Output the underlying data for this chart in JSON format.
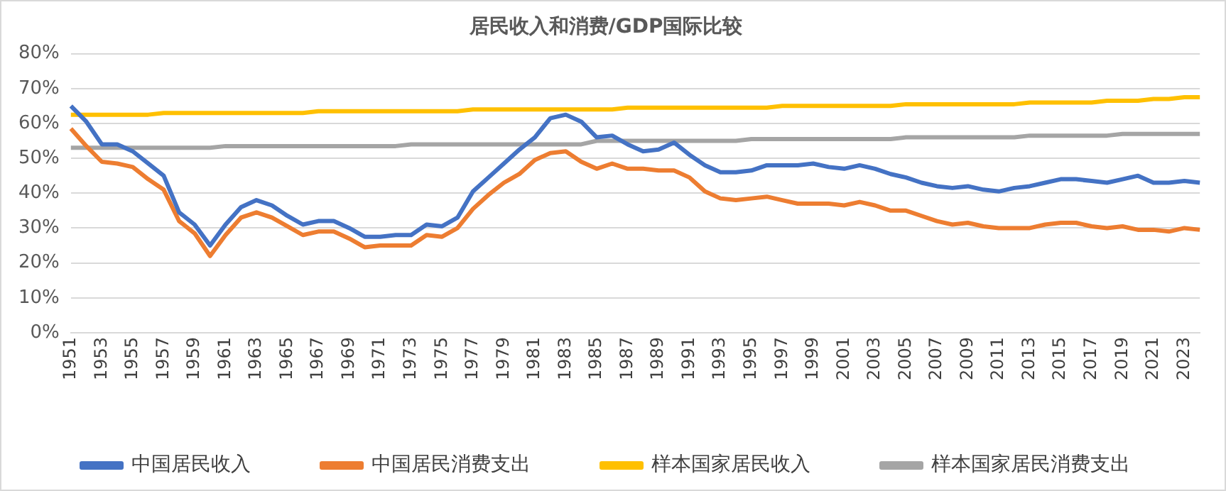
{
  "chart_data": {
    "type": "line",
    "title": "居民收入和消费/GDP国际比较",
    "categories": [
      "1951",
      null,
      "1953",
      null,
      "1955",
      null,
      "1957",
      null,
      "1959",
      null,
      "1961",
      null,
      "1963",
      null,
      "1965",
      null,
      "1967",
      null,
      "1969",
      null,
      "1971",
      null,
      "1973",
      null,
      "1975",
      null,
      "1977",
      null,
      "1979",
      null,
      "1981",
      null,
      "1983",
      null,
      "1985",
      null,
      "1987",
      null,
      "1989",
      null,
      "1991",
      null,
      "1993",
      null,
      "1995",
      null,
      "1997",
      null,
      "1999",
      null,
      "2001",
      null,
      "2003",
      null,
      "2005",
      null,
      "2007",
      null,
      "2009",
      null,
      "2011",
      null,
      "2013",
      null,
      "2015",
      null,
      "2017",
      null,
      "2019",
      null,
      "2021",
      null,
      "2023",
      null
    ],
    "series": [
      {
        "name": "中国居民收入",
        "color": "#4472c4",
        "values": [
          65,
          60.5,
          54,
          54,
          52,
          48.5,
          45,
          34.5,
          31,
          25,
          31,
          36,
          38,
          36.5,
          33.5,
          31,
          32,
          32,
          30,
          27.5,
          27.5,
          28,
          28,
          31,
          30.5,
          33,
          40.5,
          44.5,
          48.5,
          52.5,
          56,
          61.5,
          62.5,
          60.5,
          56,
          56.5,
          54,
          52,
          52.5,
          54.5,
          51,
          48,
          46,
          46,
          46.5,
          48,
          48,
          48,
          48.5,
          47.5,
          47,
          48,
          47,
          45.5,
          44.5,
          43,
          42,
          41.5,
          42,
          41,
          40.5,
          41.5,
          42,
          43,
          44,
          44,
          43.5,
          43,
          44,
          45,
          43,
          43,
          43.5,
          43
        ]
      },
      {
        "name": "中国居民消费支出",
        "color": "#ed7d31",
        "values": [
          58.5,
          53.5,
          49,
          48.5,
          47.5,
          44,
          41,
          32,
          28.5,
          22,
          28,
          33,
          34.5,
          33,
          30.5,
          28,
          29,
          29,
          27,
          24.5,
          25,
          25,
          25,
          28,
          27.5,
          30,
          35.5,
          39.5,
          43,
          45.5,
          49.5,
          51.5,
          52,
          49,
          47,
          48.5,
          47,
          47,
          46.5,
          46.5,
          44.5,
          40.5,
          38.5,
          38,
          38.5,
          39,
          38,
          37,
          37,
          37,
          36.5,
          37.5,
          36.5,
          35,
          35,
          33.5,
          32,
          31,
          31.5,
          30.5,
          30,
          30,
          30,
          31,
          31.5,
          31.5,
          30.5,
          30,
          30.5,
          29.5,
          29.5,
          29,
          30,
          29.5
        ]
      },
      {
        "name": "样本国家居民收入",
        "color": "#ffc000",
        "values": [
          62.5,
          62.5,
          62.5,
          62.5,
          62.5,
          62.5,
          63,
          63,
          63,
          63,
          63,
          63,
          63,
          63,
          63,
          63,
          63.5,
          63.5,
          63.5,
          63.5,
          63.5,
          63.5,
          63.5,
          63.5,
          63.5,
          63.5,
          64,
          64,
          64,
          64,
          64,
          64,
          64,
          64,
          64,
          64,
          64.5,
          64.5,
          64.5,
          64.5,
          64.5,
          64.5,
          64.5,
          64.5,
          64.5,
          64.5,
          65,
          65,
          65,
          65,
          65,
          65,
          65,
          65,
          65.5,
          65.5,
          65.5,
          65.5,
          65.5,
          65.5,
          65.5,
          65.5,
          66,
          66,
          66,
          66,
          66,
          66.5,
          66.5,
          66.5,
          67,
          67,
          67.5,
          67.5
        ]
      },
      {
        "name": "样本国家居民消费支出",
        "color": "#a5a5a5",
        "values": [
          53,
          53,
          53,
          53,
          53,
          53,
          53,
          53,
          53,
          53,
          53.5,
          53.5,
          53.5,
          53.5,
          53.5,
          53.5,
          53.5,
          53.5,
          53.5,
          53.5,
          53.5,
          53.5,
          54,
          54,
          54,
          54,
          54,
          54,
          54,
          54,
          54,
          54,
          54,
          54,
          55,
          55,
          55,
          55,
          55,
          55,
          55,
          55,
          55,
          55,
          55.5,
          55.5,
          55.5,
          55.5,
          55.5,
          55.5,
          55.5,
          55.5,
          55.5,
          55.5,
          56,
          56,
          56,
          56,
          56,
          56,
          56,
          56,
          56.5,
          56.5,
          56.5,
          56.5,
          56.5,
          56.5,
          57,
          57,
          57,
          57,
          57,
          57
        ]
      }
    ],
    "ylim": [
      0,
      80
    ],
    "yticks": [
      {
        "value": 0,
        "label": "0%"
      },
      {
        "value": 10,
        "label": "10%"
      },
      {
        "value": 20,
        "label": "20%"
      },
      {
        "value": 30,
        "label": "30%"
      },
      {
        "value": 40,
        "label": "40%"
      },
      {
        "value": 50,
        "label": "50%"
      },
      {
        "value": 60,
        "label": "60%"
      },
      {
        "value": 70,
        "label": "70%"
      },
      {
        "value": 80,
        "label": "80%"
      }
    ],
    "grid": "y",
    "legend": "bottom",
    "marker": "none",
    "line_style": "solid"
  }
}
